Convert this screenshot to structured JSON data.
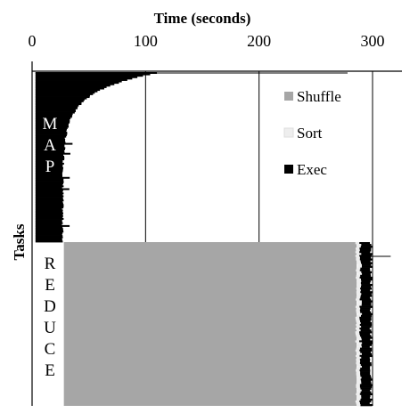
{
  "chart_data": {
    "type": "bar",
    "orientation": "horizontal-stacked-timeline",
    "title": "",
    "xlabel": "Time (seconds)",
    "ylabel": "Tasks",
    "xlim": [
      0,
      300
    ],
    "x_ticks": [
      0,
      100,
      200,
      300
    ],
    "x_tick_labels": [
      "0",
      "100",
      "200",
      "300"
    ],
    "grid": {
      "vertical": true,
      "horizontal": false
    },
    "legend": {
      "placement": "top-right",
      "entries": [
        {
          "name": "Shuffle",
          "color": "#a6a6a6"
        },
        {
          "name": "Sort",
          "color": "#eeeeee"
        },
        {
          "name": "Exec",
          "color": "#000000"
        }
      ]
    },
    "phase_labels": {
      "map": [
        "M",
        "A",
        "P"
      ],
      "reduce": [
        "R",
        "E",
        "D",
        "U",
        "C",
        "E"
      ]
    },
    "series": [
      {
        "name": "Exec",
        "phase": "map",
        "color": "#000000",
        "description_counts": {
          "tasks": 120
        },
        "start": 3,
        "typical_end": 27,
        "profile": "long-tail",
        "max_end": 110,
        "straggler_end": 278
      },
      {
        "name": "Shuffle",
        "phase": "reduce",
        "color": "#a6a6a6",
        "start": 28,
        "end": 286
      },
      {
        "name": "Sort",
        "phase": "reduce",
        "color": "#eeeeee",
        "start": 286,
        "end": 289
      },
      {
        "name": "Exec",
        "phase": "reduce",
        "color": "#000000",
        "start": 289,
        "end": 299,
        "straggler_end": 316
      }
    ]
  }
}
